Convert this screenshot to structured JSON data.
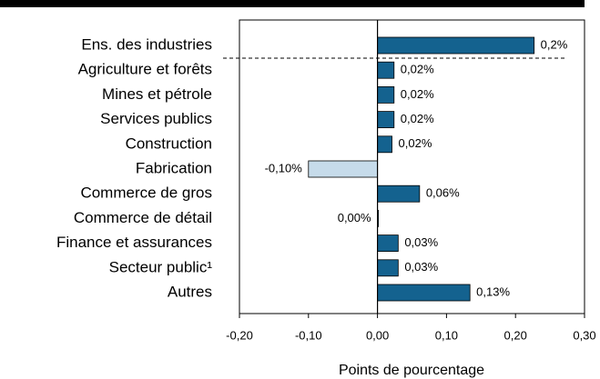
{
  "chart_data": {
    "type": "hbar",
    "categories": [
      "Ens. des industries",
      "Agriculture et forêts",
      "Mines et pétrole",
      "Services publics",
      "Construction",
      "Fabrication",
      "Commerce de gros",
      "Commerce de détail",
      "Finance et assurances",
      "Secteur public¹",
      "Autres"
    ],
    "values": [
      0.227,
      0.024,
      0.024,
      0.024,
      0.021,
      -0.1,
      0.061,
      0.0,
      0.03,
      0.03,
      0.134
    ],
    "value_labels": [
      "0,2%",
      "0,02%",
      "0,02%",
      "0,02%",
      "0,02%",
      "-0,10%",
      "0,06%",
      "0,00%",
      "0,03%",
      "0,03%",
      "0,13%"
    ],
    "color": "#14628f",
    "negative_color": "#c6dbea",
    "xlim": [
      -0.2,
      0.3
    ],
    "xticks": [
      {
        "value": -0.2,
        "label": "-0,20"
      },
      {
        "value": -0.1,
        "label": "-0,10"
      },
      {
        "value": 0,
        "label": "0,00"
      },
      {
        "value": 0.1,
        "label": "0,10"
      },
      {
        "value": 0.2,
        "label": "0,20"
      },
      {
        "value": 0.3,
        "label": "0,30"
      }
    ],
    "xlabel": "Points de pourcentage"
  }
}
